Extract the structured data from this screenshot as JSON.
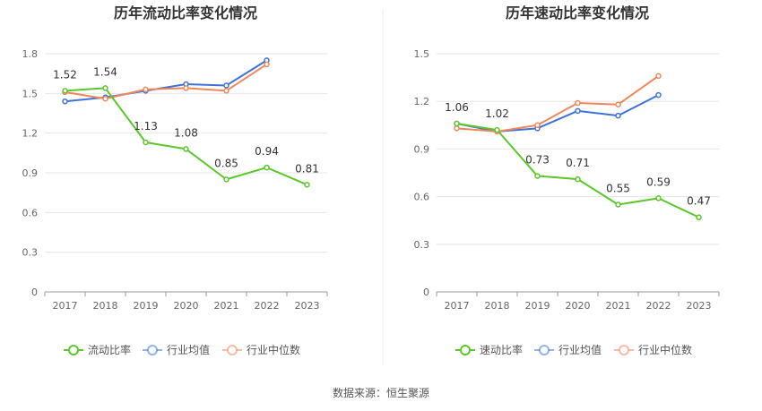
{
  "chart_data": [
    {
      "type": "line",
      "title": "历年流动比率变化情况",
      "categories": [
        "2017",
        "2018",
        "2019",
        "2020",
        "2021",
        "2022",
        "2023"
      ],
      "ylim": [
        0,
        1.8
      ],
      "yticks": [
        "0",
        "0.3",
        "0.6",
        "0.9",
        "1.2",
        "1.5",
        "1.8"
      ],
      "grid": true,
      "legend_position": "bottom",
      "series": [
        {
          "name": "流动比率",
          "color": "#5cc72a",
          "values": [
            1.52,
            1.54,
            1.13,
            1.08,
            0.85,
            0.94,
            0.81
          ],
          "labels": [
            "1.52",
            "1.54",
            "1.13",
            "1.08",
            "0.85",
            "0.94",
            "0.81"
          ]
        },
        {
          "name": "行业均值",
          "color": "#3f72d8",
          "values": [
            1.44,
            1.47,
            1.52,
            1.57,
            1.56,
            1.75,
            null
          ]
        },
        {
          "name": "行业中位数",
          "color": "#f0875a",
          "values": [
            1.51,
            1.46,
            1.53,
            1.54,
            1.52,
            1.72,
            null
          ]
        }
      ]
    },
    {
      "type": "line",
      "title": "历年速动比率变化情况",
      "categories": [
        "2017",
        "2018",
        "2019",
        "2020",
        "2021",
        "2022",
        "2023"
      ],
      "ylim": [
        0,
        1.5
      ],
      "yticks": [
        "0",
        "0.3",
        "0.6",
        "0.9",
        "1.2",
        "1.5"
      ],
      "grid": true,
      "legend_position": "bottom",
      "series": [
        {
          "name": "速动比率",
          "color": "#5cc72a",
          "values": [
            1.06,
            1.02,
            0.73,
            0.71,
            0.55,
            0.59,
            0.47
          ],
          "labels": [
            "1.06",
            "1.02",
            "0.73",
            "0.71",
            "0.55",
            "0.59",
            "0.47"
          ]
        },
        {
          "name": "行业均值",
          "color": "#3f72d8",
          "values": [
            1.06,
            1.01,
            1.03,
            1.14,
            1.11,
            1.24,
            null
          ]
        },
        {
          "name": "行业中位数",
          "color": "#f0875a",
          "values": [
            1.03,
            1.01,
            1.05,
            1.19,
            1.18,
            1.36,
            null
          ]
        }
      ]
    }
  ],
  "source_text": "数据来源：恒生聚源"
}
